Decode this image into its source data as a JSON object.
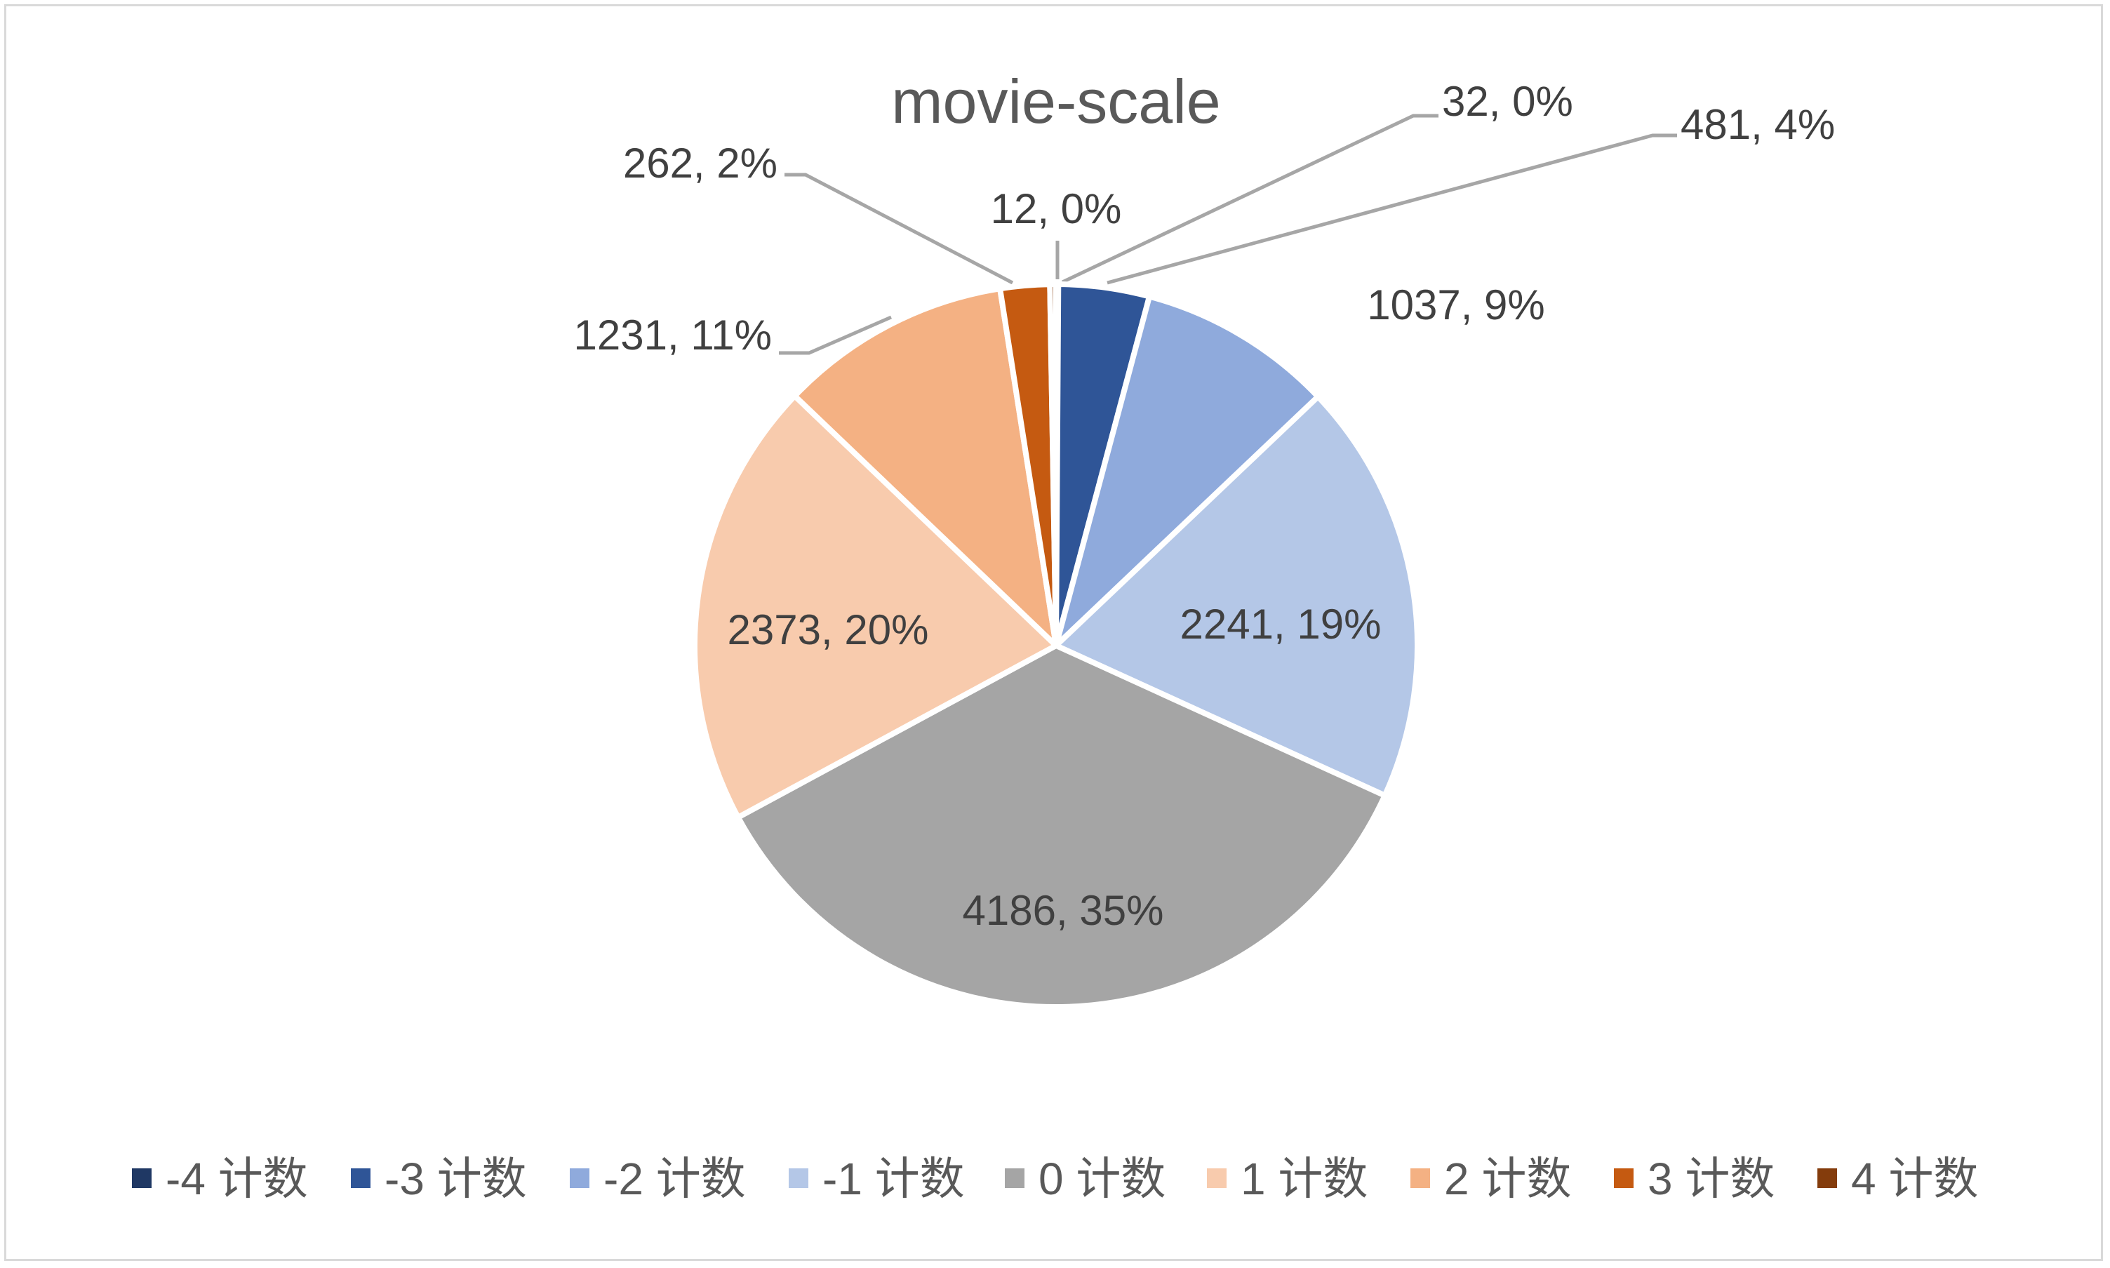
{
  "chart_data": {
    "type": "pie",
    "title": "movie-scale",
    "slices": [
      {
        "label": "-4 计数",
        "value": 12,
        "percent_label": "12, 0%",
        "color": "#1f3864"
      },
      {
        "label": "-3 计数",
        "value": 481,
        "percent_label": "481, 4%",
        "color": "#2f5597"
      },
      {
        "label": "-2 计数",
        "value": 1037,
        "percent_label": "1037, 9%",
        "color": "#8faadc"
      },
      {
        "label": "-1 计数",
        "value": 2241,
        "percent_label": "2241, 19%",
        "color": "#b4c7e7"
      },
      {
        "label": "0 计数",
        "value": 4186,
        "percent_label": "4186, 35%",
        "color": "#a5a5a5"
      },
      {
        "label": "1 计数",
        "value": 2373,
        "percent_label": "2373, 20%",
        "color": "#f8cbad"
      },
      {
        "label": "2 计数",
        "value": 1231,
        "percent_label": "1231, 11%",
        "color": "#f4b183"
      },
      {
        "label": "3 计数",
        "value": 262,
        "percent_label": "262, 2%",
        "color": "#c55a11"
      },
      {
        "label": "4 计数",
        "value": 32,
        "percent_label": "32, 0%",
        "color": "#843c0c"
      }
    ],
    "legend_position": "bottom"
  }
}
